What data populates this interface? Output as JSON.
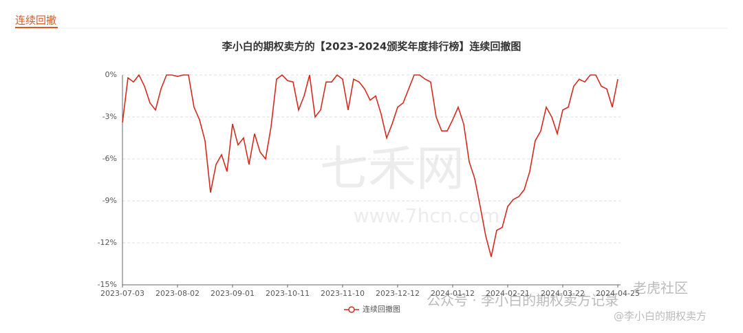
{
  "page": {
    "tab": "连续回撤"
  },
  "chart_data": {
    "type": "line",
    "title": "李小白的期权卖方的【2023-2024颁奖年度排行榜】连续回撤图",
    "categories": [
      "2023-07-03",
      null,
      null,
      null,
      null,
      null,
      null,
      null,
      null,
      null,
      "2023-08-02",
      null,
      null,
      null,
      null,
      null,
      null,
      null,
      null,
      null,
      "2023-09-01",
      null,
      null,
      null,
      null,
      null,
      null,
      null,
      null,
      null,
      "2023-10-11",
      null,
      null,
      null,
      null,
      null,
      null,
      null,
      null,
      null,
      "2023-11-10",
      null,
      null,
      null,
      null,
      null,
      null,
      null,
      null,
      null,
      "2023-12-12",
      null,
      null,
      null,
      null,
      null,
      null,
      null,
      null,
      null,
      "2024-01-12",
      null,
      null,
      null,
      null,
      null,
      null,
      null,
      null,
      null,
      "2024-02-21",
      null,
      null,
      null,
      null,
      null,
      null,
      null,
      null,
      null,
      "2024-03-22",
      null,
      null,
      null,
      null,
      null,
      null,
      null,
      null,
      null,
      "2024-04-25"
    ],
    "series": [
      {
        "name": "连续回撤图",
        "color": "#d42a1e",
        "values": [
          -3.4,
          -0.2,
          -0.5,
          0,
          -0.8,
          -2.0,
          -2.5,
          -1.0,
          0,
          0,
          -0.1,
          0,
          0,
          -2.3,
          -3.2,
          -4.7,
          -8.4,
          -6.4,
          -5.7,
          -6.9,
          -3.5,
          -5.0,
          -4.5,
          -6.4,
          -4.2,
          -5.5,
          -6.0,
          -3.7,
          -0.3,
          0,
          -0.4,
          -0.5,
          -2.5,
          -1.5,
          0,
          -3.0,
          -2.5,
          -0.5,
          -0.5,
          0,
          -0.3,
          -2.5,
          -0.3,
          -0.5,
          -1.0,
          -1.8,
          -1.5,
          -2.8,
          -4.5,
          -3.5,
          -2.3,
          -2.0,
          -1.0,
          0,
          0,
          -0.3,
          -0.5,
          -3.0,
          -4.0,
          -4.0,
          -3.2,
          -2.3,
          -3.5,
          -6.2,
          -7.4,
          -9.4,
          -11.5,
          -13.0,
          -11.1,
          -10.9,
          -9.4,
          -8.9,
          -8.7,
          -8.2,
          -6.9,
          -4.7,
          -4.0,
          -2.3,
          -3.0,
          -4.2,
          -2.5,
          -2.3,
          -0.8,
          -0.3,
          -0.5,
          0,
          0,
          -0.8,
          -1.0,
          -2.3,
          -0.3
        ]
      }
    ],
    "ylim": [
      -15,
      0
    ],
    "yticks": [
      {
        "value": -15,
        "label": "-15%"
      },
      {
        "value": -12,
        "label": "-12%"
      },
      {
        "value": -9,
        "label": "-9%"
      },
      {
        "value": -6,
        "label": "-6%"
      },
      {
        "value": -3,
        "label": "-3%"
      },
      {
        "value": 0,
        "label": "0%"
      }
    ],
    "grid": true
  },
  "watermarks": [
    "七禾网",
    "www.7hcn.com",
    "公众号 · 李小白的期权卖方记录",
    "老虎社区",
    "@李小白的期权卖方"
  ]
}
